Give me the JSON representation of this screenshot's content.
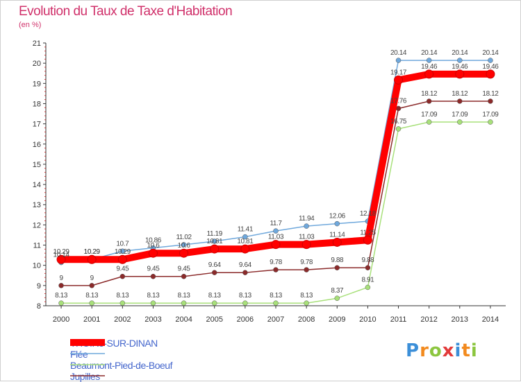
{
  "header": {
    "title": "Evolution du Taux de Taxe d'Habitation",
    "subtitle": "(en %)"
  },
  "logo": {
    "letters": [
      "P",
      "r",
      "o",
      "x",
      "i",
      "t",
      "i"
    ],
    "colors": [
      "#3c8fd8",
      "#f28a1e",
      "#8cc63f",
      "#e23a3a",
      "#3c8fd8",
      "#f28a1e",
      "#8cc63f"
    ]
  },
  "chart_data": {
    "type": "line",
    "x": [
      2000,
      2001,
      2002,
      2003,
      2004,
      2005,
      2006,
      2007,
      2008,
      2009,
      2010,
      2011,
      2012,
      2013,
      2014
    ],
    "ylim": [
      8,
      21
    ],
    "yticks": [
      8,
      9,
      10,
      11,
      12,
      13,
      14,
      15,
      16,
      17,
      18,
      19,
      20,
      21
    ],
    "grid": false,
    "legend_placement": "bottom-left",
    "series": [
      {
        "name": "THOIRé-SUR-DINAN",
        "color": "#ff0000",
        "values": [
          10.29,
          10.29,
          10.29,
          10.6,
          10.6,
          10.81,
          10.81,
          11.03,
          11.03,
          11.14,
          11.25,
          19.17,
          19.46,
          19.46,
          19.46
        ],
        "labels": [
          "10.29",
          "10.29",
          "10.29",
          "10.6",
          "10.6",
          "10.81",
          "10.81",
          "11.03",
          "11.03",
          "11.14",
          "11.25",
          "19.17",
          "19.46",
          "19.46",
          "19.46"
        ]
      },
      {
        "name": "Flée",
        "color": "#6fa8dc",
        "values": [
          10.14,
          10.29,
          10.7,
          10.86,
          11.02,
          11.19,
          11.41,
          11.7,
          11.94,
          12.06,
          12.18,
          20.14,
          20.14,
          20.14,
          20.14
        ],
        "labels": [
          "10.14",
          "10.29",
          "10.7",
          "10.86",
          "11.02",
          "11.19",
          "11.41",
          "11.7",
          "11.94",
          "12.06",
          "12.18",
          "20.14",
          "20.14",
          "20.14",
          "20.14"
        ]
      },
      {
        "name": "Beaumont-Pied-de-Boeuf",
        "color": "#a8e07a",
        "values": [
          8.13,
          8.13,
          8.13,
          8.13,
          8.13,
          8.13,
          8.13,
          8.13,
          8.13,
          8.37,
          8.91,
          16.75,
          17.09,
          17.09,
          17.09
        ],
        "labels": [
          "8.13",
          "8.13",
          "8.13",
          "8.13",
          "8.13",
          "8.13",
          "8.13",
          "8.13",
          "8.13",
          "8.37",
          "8.91",
          "16.75",
          "17.09",
          "17.09",
          "17.09"
        ]
      },
      {
        "name": "Jupilles",
        "color": "#8b2a2a",
        "values": [
          9,
          9,
          9.45,
          9.45,
          9.45,
          9.64,
          9.64,
          9.78,
          9.78,
          9.88,
          9.88,
          17.76,
          18.12,
          18.12,
          18.12
        ],
        "labels": [
          "9",
          "9",
          "9.45",
          "9.45",
          "9.45",
          "9.64",
          "9.64",
          "9.78",
          "9.78",
          "9.88",
          "9.88",
          "17.76",
          "18.12",
          "18.12",
          "18.12"
        ]
      }
    ]
  }
}
